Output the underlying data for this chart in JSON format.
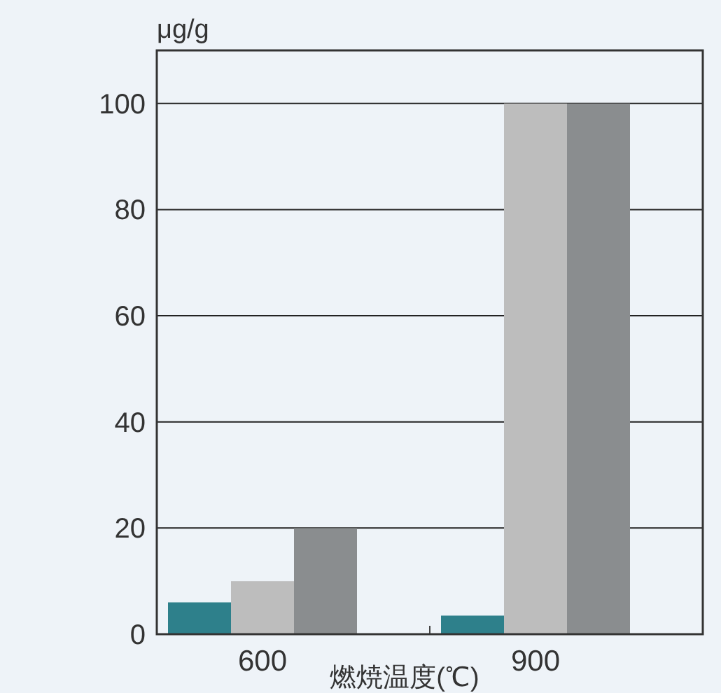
{
  "chart_data": {
    "type": "bar",
    "ylabel": "μg/g",
    "xlabel": "燃焼温度(℃)",
    "categories": [
      "600",
      "900"
    ],
    "series": [
      {
        "color": "#2e808b",
        "values": [
          6,
          3.5
        ]
      },
      {
        "color": "#bdbdbd",
        "values": [
          10,
          100
        ]
      },
      {
        "color": "#8a8d8f",
        "values": [
          20,
          100
        ]
      }
    ],
    "ylim": [
      0,
      110
    ],
    "yticks": [
      0,
      20,
      40,
      60,
      80,
      100
    ],
    "grid": "y"
  }
}
